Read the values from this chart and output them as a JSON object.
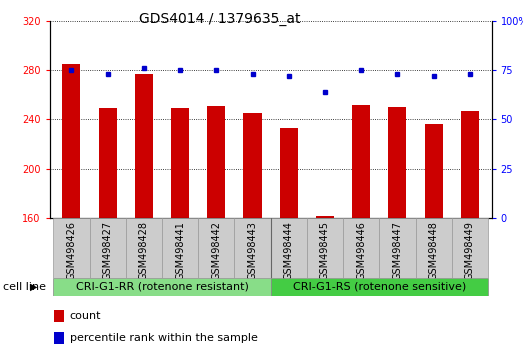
{
  "title": "GDS4014 / 1379635_at",
  "categories": [
    "GSM498426",
    "GSM498427",
    "GSM498428",
    "GSM498441",
    "GSM498442",
    "GSM498443",
    "GSM498444",
    "GSM498445",
    "GSM498446",
    "GSM498447",
    "GSM498448",
    "GSM498449"
  ],
  "count_values": [
    285,
    249,
    277,
    249,
    251,
    245,
    233,
    161,
    252,
    250,
    236,
    247
  ],
  "percentile_values": [
    75,
    73,
    76,
    75,
    75,
    73,
    72,
    64,
    75,
    73,
    72,
    73
  ],
  "ylim_left": [
    160,
    320
  ],
  "ylim_right": [
    0,
    100
  ],
  "yticks_left": [
    160,
    200,
    240,
    280,
    320
  ],
  "yticks_right": [
    0,
    25,
    50,
    75,
    100
  ],
  "bar_color": "#cc0000",
  "dot_color": "#0000cc",
  "bar_width": 0.5,
  "plot_bg_color": "#ffffff",
  "group1_label": "CRI-G1-RR (rotenone resistant)",
  "group2_label": "CRI-G1-RS (rotenone sensitive)",
  "group1_color": "#88dd88",
  "group2_color": "#44cc44",
  "group1_count": 6,
  "group2_count": 6,
  "cell_line_label": "cell line",
  "legend_count_label": "count",
  "legend_percentile_label": "percentile rank within the sample",
  "title_fontsize": 10,
  "tick_fontsize": 7,
  "label_fontsize": 8,
  "legend_fontsize": 8,
  "separator_color": "#aaaaaa"
}
